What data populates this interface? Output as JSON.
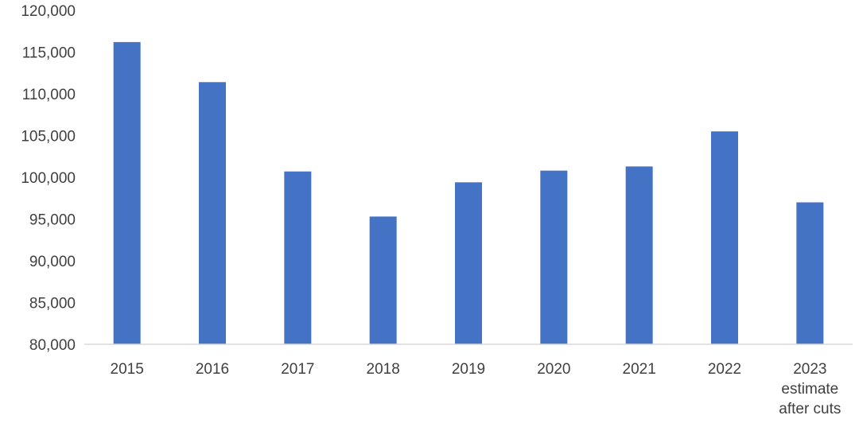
{
  "chart_data": {
    "type": "bar",
    "title": "",
    "xlabel": "",
    "ylabel": "",
    "ylim": [
      80000,
      120000
    ],
    "yticks": [
      80000,
      85000,
      90000,
      95000,
      100000,
      105000,
      110000,
      115000,
      120000
    ],
    "ytick_labels": [
      "80,000",
      "85,000",
      "90,000",
      "95,000",
      "100,000",
      "105,000",
      "110,000",
      "115,000",
      "120,000"
    ],
    "categories": [
      [
        "2015"
      ],
      [
        "2016"
      ],
      [
        "2017"
      ],
      [
        "2018"
      ],
      [
        "2019"
      ],
      [
        "2020"
      ],
      [
        "2021"
      ],
      [
        "2022"
      ],
      [
        "2023",
        "estimate",
        "after cuts"
      ]
    ],
    "values": [
      116200,
      111400,
      100700,
      95300,
      99400,
      100800,
      101300,
      105500,
      97000
    ],
    "bar_color": "#4472C4",
    "axis_color": "#D9D9D9",
    "text_color": "#404040",
    "grid": false,
    "legend": "none"
  }
}
